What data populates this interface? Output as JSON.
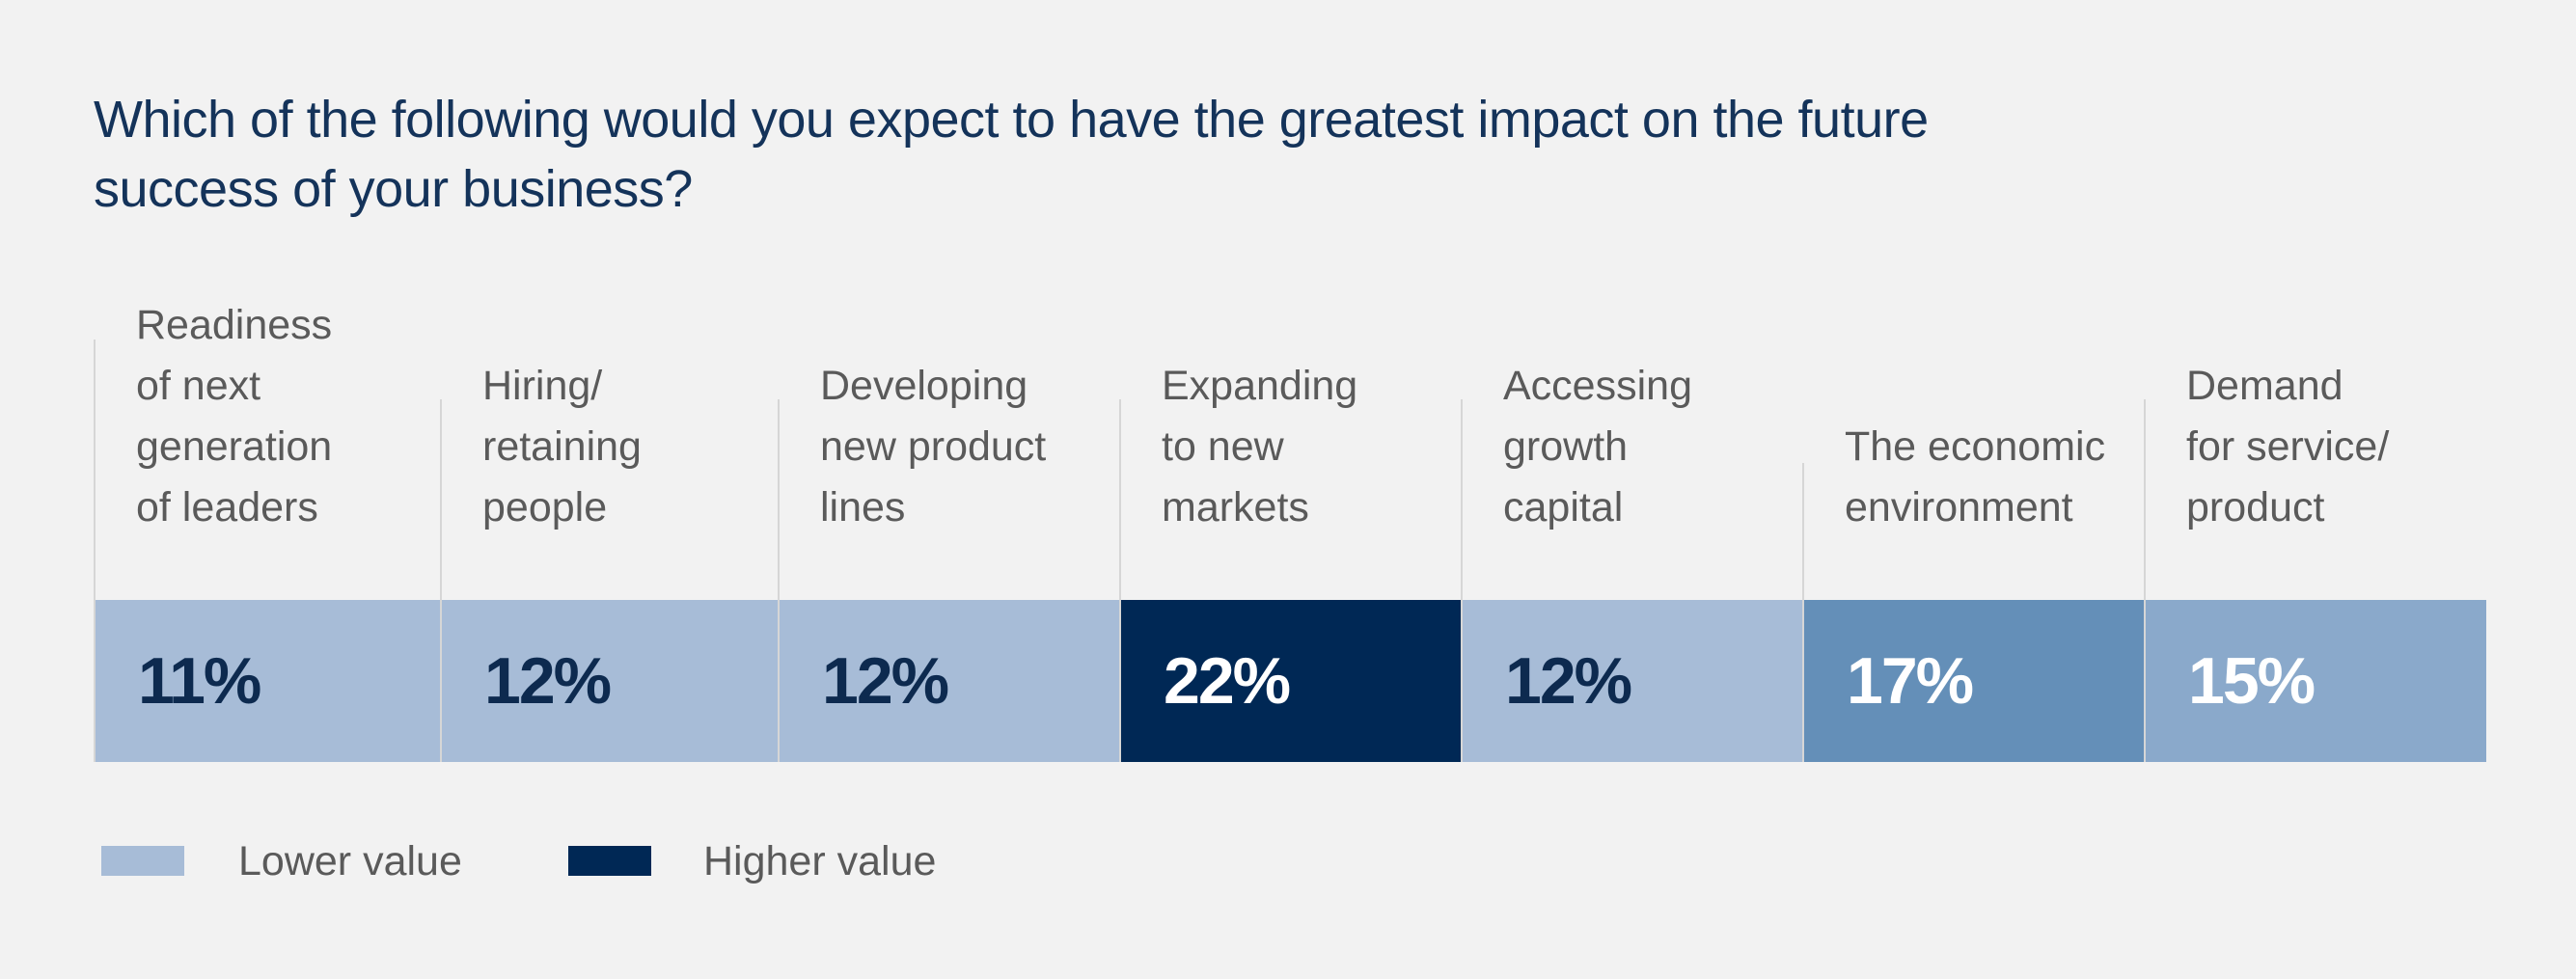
{
  "chart_data": {
    "type": "heatmap",
    "title": "Which of the following would you expect to have the greatest impact on the future success of your business?",
    "categories": [
      "Readiness of next generation of leaders",
      "Hiring/ retaining people",
      "Developing new product lines",
      "Expanding to new markets",
      "Accessing growth capital",
      "The economic environment",
      "Demand for service/ product"
    ],
    "category_lines": [
      "Readiness\nof next\ngeneration\nof leaders",
      "Hiring/\nretaining\npeople",
      "Developing\nnew product\nlines",
      "Expanding\nto new\nmarkets",
      "Accessing\ngrowth\ncapital",
      "The economic\nenvironment",
      "Demand\nfor service/\nproduct"
    ],
    "values": [
      11,
      12,
      12,
      22,
      12,
      17,
      15
    ],
    "value_labels": [
      "11%",
      "12%",
      "12%",
      "22%",
      "12%",
      "17%",
      "15%"
    ],
    "unit": "%",
    "cell_colors": [
      "#a7bcd7",
      "#a7bcd7",
      "#a7bcd7",
      "#002855",
      "#a7bcd7",
      "#648fb8",
      "#8aa9cb"
    ],
    "text_colors": [
      "#0d2a4f",
      "#0d2a4f",
      "#0d2a4f",
      "#ffffff",
      "#0d2a4f",
      "#ffffff",
      "#ffffff"
    ],
    "legend": {
      "placement": "bottom-left",
      "items": [
        {
          "label": "Lower value",
          "color": "#a7bcd7"
        },
        {
          "label": "Higher value",
          "color": "#002855"
        }
      ]
    }
  }
}
